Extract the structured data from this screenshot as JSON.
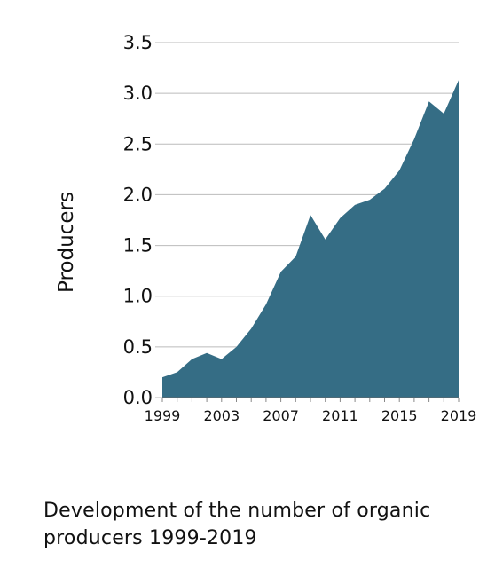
{
  "caption": "Development of the number of organic producers 1999-2019",
  "chart_data": {
    "type": "area",
    "title": "",
    "xlabel": "",
    "ylabel": "Producers",
    "x": [
      1999,
      2000,
      2001,
      2002,
      2003,
      2004,
      2005,
      2006,
      2007,
      2008,
      2009,
      2010,
      2011,
      2012,
      2013,
      2014,
      2015,
      2016,
      2017,
      2018,
      2019
    ],
    "series": [
      {
        "values": [
          0.2,
          0.25,
          0.38,
          0.44,
          0.38,
          0.5,
          0.68,
          0.92,
          1.24,
          1.39,
          1.8,
          1.56,
          1.77,
          1.9,
          1.95,
          2.06,
          2.24,
          2.55,
          2.92,
          2.8,
          3.13
        ]
      }
    ],
    "xticks": [
      "1999",
      "2003",
      "2007",
      "2011",
      "2015",
      "2019"
    ],
    "yticks": [
      "0.0",
      "0.5",
      "1.0",
      "1.5",
      "2.0",
      "2.5",
      "3.0",
      "3.5"
    ],
    "xlim": [
      1999,
      2019
    ],
    "ylim": [
      0,
      3.5
    ],
    "grid": true,
    "fill_color": "#356d85",
    "grid_color": "#bbbbbb"
  }
}
